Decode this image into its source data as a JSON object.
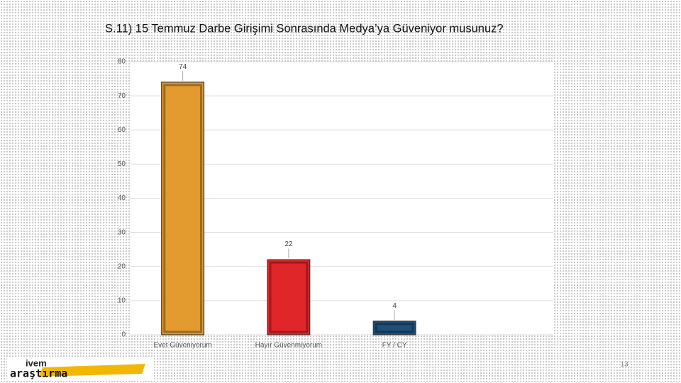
{
  "chart_data": {
    "type": "bar",
    "title": "S.11) 15 Temmuz Darbe Girişimi Sonrasında Medya’ya Güveniyor musunuz?",
    "categories": [
      "Evet Güveniyorum",
      "Hayır Güvenmiyorum",
      "FY / CY",
      null
    ],
    "values": [
      74,
      22,
      4,
      null
    ],
    "colors": [
      "#e39a2f",
      "#e1262a",
      "#1f4e79",
      null
    ],
    "ylim": [
      0,
      80
    ],
    "yticks": [
      0,
      10,
      20,
      30,
      40,
      50,
      60,
      70,
      80
    ],
    "grid": true
  },
  "footer": {
    "logo_top": "ivem",
    "logo_bottom": "araştırma",
    "page_number": "13"
  }
}
